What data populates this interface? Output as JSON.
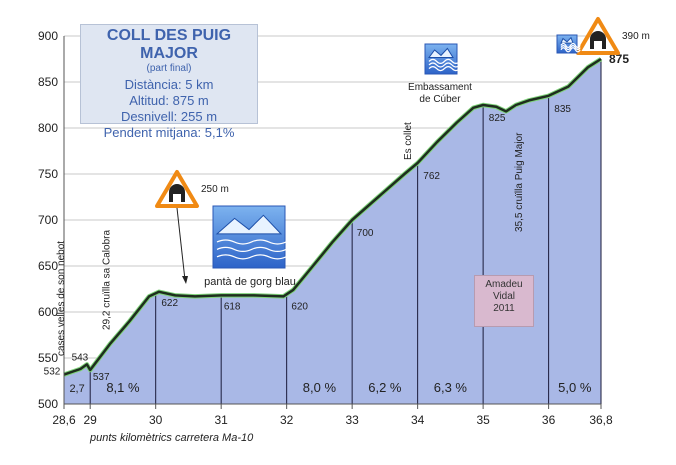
{
  "info": {
    "title": "COLL DES PUIG MAJOR",
    "subtitle": "(part final)",
    "lines": [
      "Distància: 5 km",
      "Altitud: 875 m",
      "Desnivell: 255 m",
      "Pendent mitjana: 5,1%"
    ]
  },
  "credit": [
    "Amadeu",
    "Vidal",
    "2011"
  ],
  "axis_caption": "punts kilomètrics  carretera  Ma-10",
  "colors": {
    "fill": "#a9b8e6",
    "profile": "#1e2e1e",
    "profile_glow": "#7fd37a"
  },
  "chart_data": {
    "type": "area",
    "xlim": [
      28.6,
      36.8
    ],
    "ylim": [
      500,
      900
    ],
    "y_ticks": [
      500,
      550,
      600,
      650,
      700,
      750,
      800,
      850,
      900
    ],
    "x_ticks": [
      "28,6",
      "29",
      "30",
      "31",
      "32",
      "33",
      "34",
      "35",
      "36",
      "36,8"
    ],
    "x_tick_values": [
      28.6,
      29,
      30,
      31,
      32,
      33,
      34,
      35,
      36,
      36.8
    ],
    "profile": [
      [
        28.6,
        532
      ],
      [
        28.85,
        538
      ],
      [
        28.95,
        543
      ],
      [
        29.0,
        537
      ],
      [
        29.3,
        565
      ],
      [
        29.6,
        590
      ],
      [
        29.9,
        617
      ],
      [
        30.05,
        622
      ],
      [
        30.3,
        618
      ],
      [
        30.6,
        617
      ],
      [
        31.0,
        618
      ],
      [
        31.5,
        618
      ],
      [
        31.95,
        617
      ],
      [
        32.1,
        624
      ],
      [
        32.4,
        650
      ],
      [
        32.7,
        676
      ],
      [
        33.0,
        700
      ],
      [
        33.4,
        725
      ],
      [
        33.8,
        750
      ],
      [
        34.0,
        762
      ],
      [
        34.3,
        785
      ],
      [
        34.6,
        806
      ],
      [
        34.85,
        822
      ],
      [
        35.0,
        825
      ],
      [
        35.2,
        823
      ],
      [
        35.35,
        818
      ],
      [
        35.5,
        825
      ],
      [
        35.7,
        830
      ],
      [
        36.0,
        835
      ],
      [
        36.3,
        845
      ],
      [
        36.6,
        866
      ],
      [
        36.8,
        875
      ]
    ],
    "segment_x": [
      28.6,
      29,
      30,
      31,
      32,
      33,
      34,
      35,
      36,
      36.8
    ],
    "point_labels": [
      {
        "x": 28.6,
        "y": 532,
        "text": "532"
      },
      {
        "x": 28.95,
        "y": 543,
        "text": "543"
      },
      {
        "x": 29.0,
        "y": 537,
        "text": "537"
      },
      {
        "x": 30.0,
        "y": 622,
        "text": "622"
      },
      {
        "x": 31.0,
        "y": 618,
        "text": "618"
      },
      {
        "x": 32.0,
        "y": 620,
        "text": "620"
      },
      {
        "x": 33.0,
        "y": 700,
        "text": "700"
      },
      {
        "x": 34.0,
        "y": 762,
        "text": "762"
      },
      {
        "x": 35.0,
        "y": 825,
        "text": "825"
      },
      {
        "x": 36.0,
        "y": 835,
        "text": "835"
      },
      {
        "x": 36.8,
        "y": 875,
        "text": "875"
      }
    ],
    "gradients": [
      {
        "x": 28.8,
        "text": "2,7"
      },
      {
        "x": 29.5,
        "text": "8,1 %"
      },
      {
        "x": 32.5,
        "text": "8,0 %"
      },
      {
        "x": 33.5,
        "text": "6,2 %"
      },
      {
        "x": 34.5,
        "text": "6,3 %"
      },
      {
        "x": 36.4,
        "text": "5,0 %"
      }
    ],
    "annotations": [
      {
        "x": 28.6,
        "text": "cases velles de son nebot"
      },
      {
        "x": 29.2,
        "text": "29,2 cruïlla sa Calobra"
      },
      {
        "x": 33.85,
        "text": "Es collet"
      },
      {
        "x": 35.5,
        "text": "35,5 cruïlla Puig Major"
      },
      {
        "x": 31.1,
        "text": "pantà de gorg blau"
      },
      {
        "x": 34.2,
        "text": "Embassament de Cúber"
      }
    ],
    "tunnels": [
      {
        "label": "250 m",
        "x": 30.0
      },
      {
        "label": "390 m",
        "x": 36.8
      }
    ]
  }
}
